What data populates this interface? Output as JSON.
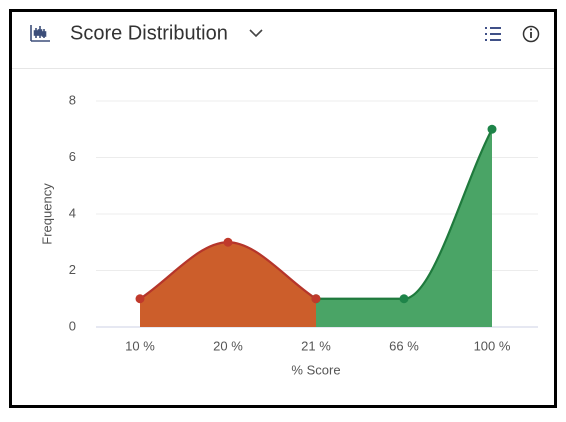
{
  "header": {
    "title": "Score Distribution"
  },
  "chart_data": {
    "type": "area",
    "x_label": "% Score",
    "y_label": "Frequency",
    "categories": [
      "10 %",
      "20 %",
      "21 %",
      "66 %",
      "100 %"
    ],
    "series": [
      {
        "color": "#cc5e2b",
        "line_color": "#b5352a",
        "marker_color": "#c0392b",
        "values": [
          1,
          3,
          1,
          null,
          null
        ]
      },
      {
        "color": "#4aa466",
        "line_color": "#1f7a3d",
        "marker_color": "#1e8449",
        "values": [
          null,
          null,
          1,
          1,
          7
        ]
      }
    ],
    "ylim": [
      0,
      8
    ],
    "yticks": [
      0,
      2,
      4,
      6,
      8
    ],
    "grid": true,
    "smooth": true
  }
}
